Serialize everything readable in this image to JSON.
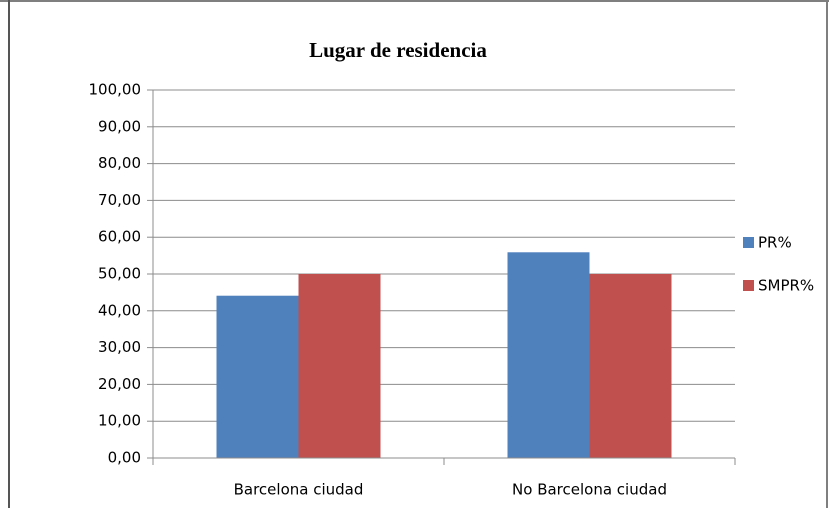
{
  "chart_data": {
    "type": "bar",
    "title": "Lugar de residencia",
    "categories": [
      "Barcelona ciudad",
      "No Barcelona ciudad"
    ],
    "series": [
      {
        "name": "PR%",
        "color": "#4f81bd",
        "values": [
          44.1,
          55.9
        ]
      },
      {
        "name": "SMPR%",
        "color": "#c0504d",
        "values": [
          50,
          50
        ]
      }
    ],
    "ylim": [
      0,
      100
    ],
    "yticks": [
      {
        "value": 0,
        "label": "0,00"
      },
      {
        "value": 10,
        "label": "10,00"
      },
      {
        "value": 20,
        "label": "20,00"
      },
      {
        "value": 30,
        "label": "30,00"
      },
      {
        "value": 40,
        "label": "40,00"
      },
      {
        "value": 50,
        "label": "50,00"
      },
      {
        "value": 60,
        "label": "60,00"
      },
      {
        "value": 70,
        "label": "70,00"
      },
      {
        "value": 80,
        "label": "80,00"
      },
      {
        "value": 90,
        "label": "90,00"
      },
      {
        "value": 100,
        "label": "100,00"
      }
    ],
    "grid": true,
    "legend": "right"
  }
}
